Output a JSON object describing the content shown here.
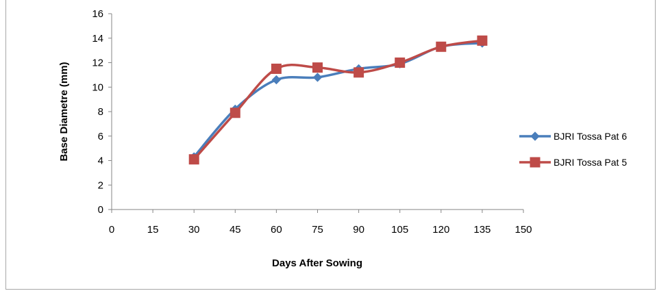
{
  "chart_data": {
    "type": "line",
    "xlabel": "Days After Sowing",
    "ylabel": "Base Diametre (mm)",
    "xlim": [
      0,
      150
    ],
    "ylim": [
      0,
      16
    ],
    "xticks": [
      0,
      15,
      30,
      45,
      60,
      75,
      90,
      105,
      120,
      135,
      150
    ],
    "yticks": [
      0,
      2,
      4,
      6,
      8,
      10,
      12,
      14,
      16
    ],
    "grid": false,
    "legend_position": "right",
    "series": [
      {
        "name": "BJRI Tossa Pat 6",
        "color": "#4a7ebb",
        "marker": "diamond",
        "x": [
          30,
          45,
          60,
          75,
          90,
          105,
          120,
          135
        ],
        "y": [
          4.3,
          8.2,
          10.6,
          10.8,
          11.5,
          11.9,
          13.3,
          13.6
        ]
      },
      {
        "name": "BJRI Tossa Pat 5",
        "color": "#be4b48",
        "marker": "square",
        "x": [
          30,
          45,
          60,
          75,
          90,
          105,
          120,
          135
        ],
        "y": [
          4.1,
          7.9,
          11.5,
          11.6,
          11.2,
          12.0,
          13.3,
          13.8
        ]
      }
    ]
  }
}
